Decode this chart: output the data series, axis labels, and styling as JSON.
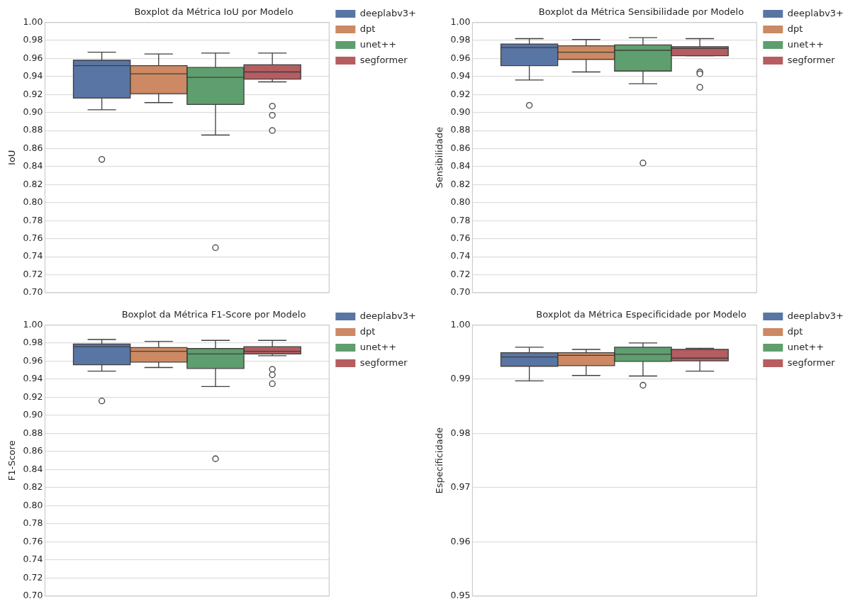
{
  "chart_data": [
    {
      "type": "box",
      "title": "Boxplot da Métrica IoU por Modelo",
      "ylabel": "IoU",
      "categories": [
        null
      ],
      "ylim": [
        0.7,
        1.0
      ],
      "yticks": [
        {
          "value": 0.7,
          "label": "0.70"
        },
        0.72,
        0.74,
        0.76,
        0.78,
        {
          "value": 0.8,
          "label": "0.80"
        },
        0.82,
        0.84,
        0.86,
        0.88,
        {
          "value": 0.9,
          "label": "0.90"
        },
        0.92,
        0.94,
        0.96,
        0.98,
        {
          "value": 1.0,
          "label": "1.00"
        }
      ],
      "grid": "y",
      "legend": "right",
      "tick_labels": "y",
      "series": [
        {
          "name": "deeplabv3+",
          "color": "#5975a4",
          "boxes": [
            {
              "low": 0.903,
              "q1": 0.916,
              "median": 0.952,
              "q3": 0.958,
              "high": 0.967,
              "outliers": [
                0.848
              ]
            }
          ]
        },
        {
          "name": "dpt",
          "color": "#cc8963",
          "boxes": [
            {
              "low": 0.911,
              "q1": 0.921,
              "median": 0.943,
              "q3": 0.952,
              "high": 0.965
            }
          ]
        },
        {
          "name": "unet++",
          "color": "#5f9e6e",
          "boxes": [
            {
              "low": 0.875,
              "q1": 0.909,
              "median": 0.939,
              "q3": 0.95,
              "high": 0.966,
              "outliers": [
                0.75
              ]
            }
          ]
        },
        {
          "name": "segformer",
          "color": "#b55d60",
          "boxes": [
            {
              "low": 0.934,
              "q1": 0.937,
              "median": 0.945,
              "q3": 0.953,
              "high": 0.966,
              "outliers": [
                0.907,
                0.897,
                0.88
              ]
            }
          ]
        }
      ]
    },
    {
      "type": "box",
      "title": "Boxplot da Métrica Sensibilidade por Modelo",
      "ylabel": "Sensibilidade",
      "categories": [
        null
      ],
      "ylim": [
        0.7,
        1.0
      ],
      "yticks": [
        {
          "value": 0.7,
          "label": "0.70"
        },
        0.72,
        0.74,
        0.76,
        0.78,
        {
          "value": 0.8,
          "label": "0.80"
        },
        0.82,
        0.84,
        0.86,
        0.88,
        {
          "value": 0.9,
          "label": "0.90"
        },
        0.92,
        0.94,
        0.96,
        0.98,
        {
          "value": 1.0,
          "label": "1.00"
        }
      ],
      "grid": "y",
      "legend": "right",
      "tick_labels": "y",
      "series": [
        {
          "name": "deeplabv3+",
          "color": "#5975a4",
          "boxes": [
            {
              "low": 0.936,
              "q1": 0.952,
              "median": 0.972,
              "q3": 0.976,
              "high": 0.982,
              "outliers": [
                0.908
              ]
            }
          ]
        },
        {
          "name": "dpt",
          "color": "#cc8963",
          "boxes": [
            {
              "low": 0.945,
              "q1": 0.959,
              "median": 0.967,
              "q3": 0.974,
              "high": 0.981
            }
          ]
        },
        {
          "name": "unet++",
          "color": "#5f9e6e",
          "boxes": [
            {
              "low": 0.932,
              "q1": 0.946,
              "median": 0.969,
              "q3": 0.975,
              "high": 0.983,
              "outliers": [
                0.844
              ]
            }
          ]
        },
        {
          "name": "segformer",
          "color": "#b55d60",
          "boxes": [
            {
              "low": 0.963,
              "q1": 0.963,
              "median": 0.971,
              "q3": 0.973,
              "high": 0.982,
              "outliers": [
                0.945,
                0.943,
                0.928
              ]
            }
          ]
        }
      ]
    },
    {
      "type": "box",
      "title": "Boxplot da Métrica F1-Score por Modelo",
      "ylabel": "F1-Score",
      "categories": [
        null
      ],
      "ylim": [
        0.7,
        1.0
      ],
      "yticks": [
        {
          "value": 0.7,
          "label": "0.70"
        },
        0.72,
        0.74,
        0.76,
        0.78,
        {
          "value": 0.8,
          "label": "0.80"
        },
        0.82,
        0.84,
        0.86,
        0.88,
        {
          "value": 0.9,
          "label": "0.90"
        },
        0.92,
        0.94,
        0.96,
        0.98,
        {
          "value": 1.0,
          "label": "1.00"
        }
      ],
      "grid": "y",
      "legend": "right",
      "tick_labels": "y",
      "series": [
        {
          "name": "deeplabv3+",
          "color": "#5975a4",
          "boxes": [
            {
              "low": 0.949,
              "q1": 0.956,
              "median": 0.976,
              "q3": 0.979,
              "high": 0.984,
              "outliers": [
                0.916
              ]
            }
          ]
        },
        {
          "name": "dpt",
          "color": "#cc8963",
          "boxes": [
            {
              "low": 0.953,
              "q1": 0.959,
              "median": 0.971,
              "q3": 0.975,
              "high": 0.982
            }
          ]
        },
        {
          "name": "unet++",
          "color": "#5f9e6e",
          "boxes": [
            {
              "low": 0.932,
              "q1": 0.952,
              "median": 0.968,
              "q3": 0.974,
              "high": 0.983,
              "outliers": [
                0.852
              ]
            }
          ]
        },
        {
          "name": "segformer",
          "color": "#b55d60",
          "boxes": [
            {
              "low": 0.966,
              "q1": 0.968,
              "median": 0.971,
              "q3": 0.976,
              "high": 0.983,
              "outliers": [
                0.951,
                0.945,
                0.935
              ]
            }
          ]
        }
      ]
    },
    {
      "type": "box",
      "title": "Boxplot da Métrica Especificidade por Modelo",
      "ylabel": "Especificidade",
      "categories": [
        null
      ],
      "ylim": [
        0.95,
        1.0
      ],
      "yticks": [
        0.95,
        0.96,
        0.97,
        0.98,
        0.99,
        {
          "value": 1.0,
          "label": "1.00"
        }
      ],
      "grid": "y",
      "legend": "right",
      "tick_labels": "y",
      "series": [
        {
          "name": "deeplabv3+",
          "color": "#5975a4",
          "boxes": [
            {
              "low": 0.9897,
              "q1": 0.9924,
              "median": 0.9941,
              "q3": 0.9949,
              "high": 0.9959
            }
          ]
        },
        {
          "name": "dpt",
          "color": "#cc8963",
          "boxes": [
            {
              "low": 0.9907,
              "q1": 0.9925,
              "median": 0.9944,
              "q3": 0.9949,
              "high": 0.9955
            }
          ]
        },
        {
          "name": "unet++",
          "color": "#5f9e6e",
          "boxes": [
            {
              "low": 0.9906,
              "q1": 0.9933,
              "median": 0.9946,
              "q3": 0.9959,
              "high": 0.9967,
              "outliers": [
                0.9889
              ]
            }
          ]
        },
        {
          "name": "segformer",
          "color": "#b55d60",
          "boxes": [
            {
              "low": 0.9915,
              "q1": 0.9934,
              "median": 0.9939,
              "q3": 0.9955,
              "high": 0.9957
            }
          ]
        }
      ]
    }
  ]
}
